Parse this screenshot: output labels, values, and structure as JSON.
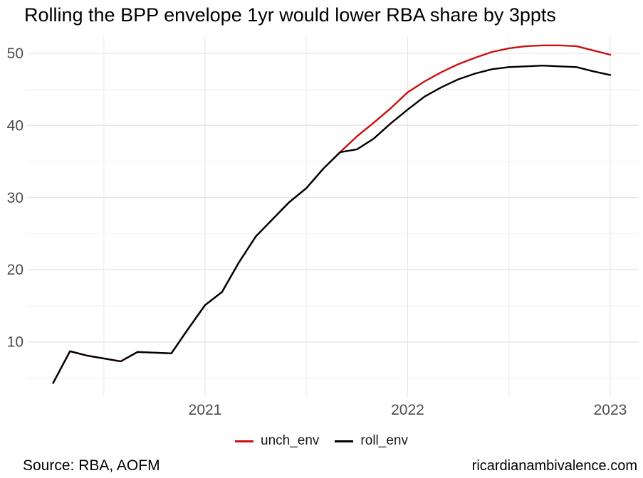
{
  "title": "Rolling the BPP envelope 1yr would lower RBA share by 3ppts",
  "footer": {
    "source": "Source: RBA, AOFM",
    "watermark": "ricardianambivalence.com"
  },
  "style_colors": {
    "unch_env_line": "#cc0f0f",
    "roll_env_line": "#000000",
    "grid_major": "#e6e6e6",
    "grid_minor": "#f2f2f2",
    "axis_text": "#4d4d4d",
    "background": "#ffffff"
  },
  "chart_data": {
    "type": "line",
    "title": "Rolling the BPP envelope 1yr would lower RBA share by 3ppts",
    "xlabel": "",
    "ylabel": "",
    "x": [
      "2020-04",
      "2020-05",
      "2020-06",
      "2020-07",
      "2020-08",
      "2020-09",
      "2020-10",
      "2020-11",
      "2020-12",
      "2021-01",
      "2021-02",
      "2021-03",
      "2021-04",
      "2021-05",
      "2021-06",
      "2021-07",
      "2021-08",
      "2021-09",
      "2021-10",
      "2021-11",
      "2021-12",
      "2022-01",
      "2022-02",
      "2022-03",
      "2022-04",
      "2022-05",
      "2022-06",
      "2022-07",
      "2022-08",
      "2022-09",
      "2022-10",
      "2022-11",
      "2022-12",
      "2023-01"
    ],
    "series": [
      {
        "name": "unch_env",
        "color": "#cc0f0f",
        "values": [
          4.3,
          8.7,
          8.1,
          7.7,
          7.3,
          8.6,
          8.5,
          8.4,
          11.8,
          15.1,
          16.9,
          21.0,
          24.6,
          27.0,
          29.4,
          31.3,
          34.0,
          36.3,
          38.5,
          40.4,
          42.4,
          44.6,
          46.1,
          47.4,
          48.5,
          49.4,
          50.2,
          50.7,
          51.0,
          51.1,
          51.1,
          51.0,
          50.4,
          49.8
        ]
      },
      {
        "name": "roll_env",
        "color": "#000000",
        "values": [
          4.3,
          8.7,
          8.1,
          7.7,
          7.3,
          8.6,
          8.5,
          8.4,
          11.8,
          15.1,
          16.9,
          21.0,
          24.6,
          27.0,
          29.4,
          31.3,
          34.0,
          36.3,
          36.7,
          38.2,
          40.3,
          42.2,
          44.0,
          45.3,
          46.4,
          47.2,
          47.8,
          48.1,
          48.2,
          48.3,
          48.2,
          48.1,
          47.5,
          47.0
        ]
      }
    ],
    "ylim": [
      2.5,
      52.5
    ],
    "yticks": [
      10,
      20,
      30,
      40,
      50
    ],
    "yticks_minor": [
      5,
      15,
      25,
      35,
      45
    ],
    "xticks": [
      {
        "label": "2021",
        "at": "2021-01"
      },
      {
        "label": "2022",
        "at": "2022-01"
      },
      {
        "label": "2023",
        "at": "2023-01"
      }
    ],
    "xticks_minor": [
      "2020-07",
      "2021-07",
      "2022-07"
    ],
    "grid": "major+minor horizontal and vertical, no axis lines",
    "legend_position": "bottom"
  }
}
